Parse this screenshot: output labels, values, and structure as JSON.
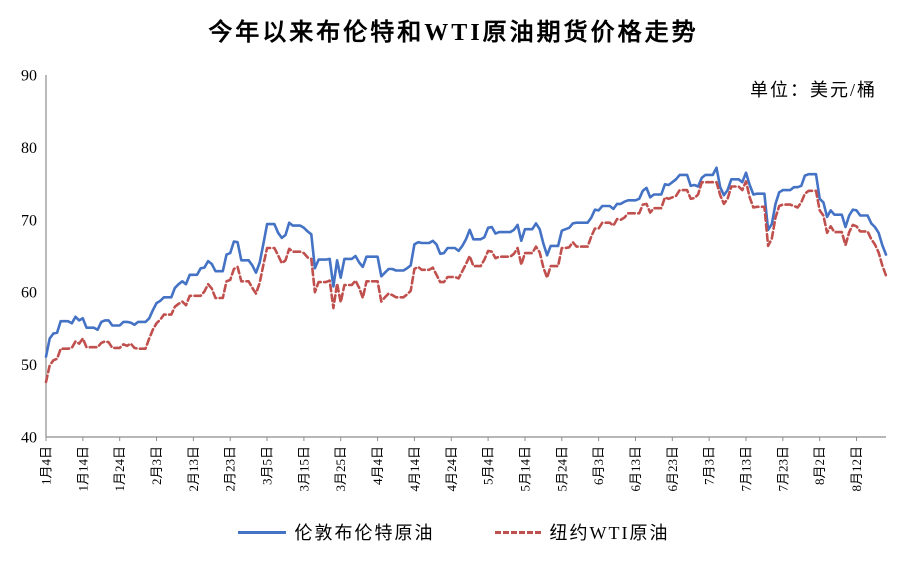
{
  "chart_data": {
    "type": "line",
    "title": "今年以来布伦特和WTI原油期货价格走势",
    "unit_label": "单位：美元/桶",
    "ylim": [
      40,
      90
    ],
    "yticks": [
      40,
      50,
      60,
      70,
      80,
      90
    ],
    "grid": false,
    "legend_position": "bottom",
    "xtick_every": 10,
    "xtick_labels": [
      "1月4日",
      "1月14日",
      "1月24日",
      "2月3日",
      "2月13日",
      "2月23日",
      "3月5日",
      "3月15日",
      "3月25日",
      "4月4日",
      "4月14日",
      "4月24日",
      "5月4日",
      "5月14日",
      "5月24日",
      "6月3日",
      "6月13日",
      "6月23日",
      "7月3日",
      "7月13日",
      "7月23日",
      "8月2日",
      "8月12日"
    ],
    "series": [
      {
        "name": "伦敦布伦特原油",
        "color": "#4472C4",
        "line_style": "solid",
        "values": [
          51.1,
          53.6,
          54.3,
          54.4,
          56.0,
          56.0,
          56.0,
          55.7,
          56.6,
          56.1,
          56.4,
          55.1,
          55.1,
          55.1,
          54.8,
          55.9,
          56.1,
          56.1,
          55.4,
          55.4,
          55.4,
          55.9,
          55.9,
          55.8,
          55.5,
          55.9,
          55.9,
          55.9,
          56.4,
          57.5,
          58.5,
          58.8,
          59.3,
          59.3,
          59.3,
          60.6,
          61.1,
          61.5,
          61.1,
          62.4,
          62.4,
          62.4,
          63.3,
          63.4,
          64.3,
          63.9,
          62.9,
          62.9,
          62.9,
          65.2,
          65.4,
          67.0,
          66.9,
          64.4,
          64.4,
          64.4,
          63.7,
          62.7,
          64.1,
          66.7,
          69.4,
          69.4,
          69.4,
          68.2,
          67.5,
          67.9,
          69.6,
          69.2,
          69.2,
          69.2,
          68.9,
          68.4,
          68.0,
          63.3,
          64.5,
          64.5,
          64.5,
          64.6,
          60.8,
          64.4,
          62.0,
          64.6,
          64.6,
          64.6,
          65.0,
          64.1,
          63.5,
          64.9,
          64.9,
          64.9,
          64.9,
          62.2,
          62.7,
          63.2,
          63.2,
          63.0,
          63.0,
          63.0,
          63.3,
          63.7,
          66.6,
          66.9,
          66.8,
          66.8,
          66.8,
          67.1,
          66.6,
          65.3,
          65.4,
          66.1,
          66.1,
          66.1,
          65.7,
          66.4,
          67.3,
          68.6,
          67.3,
          67.3,
          67.3,
          67.6,
          68.9,
          69.0,
          68.1,
          68.3,
          68.3,
          68.3,
          68.3,
          68.6,
          69.3,
          67.1,
          68.7,
          68.7,
          68.7,
          69.5,
          68.7,
          66.7,
          65.1,
          66.4,
          66.4,
          66.4,
          68.5,
          68.7,
          68.9,
          69.5,
          69.6,
          69.6,
          69.6,
          69.6,
          70.3,
          71.4,
          71.3,
          71.9,
          71.9,
          71.9,
          71.5,
          72.2,
          72.2,
          72.5,
          72.7,
          72.7,
          72.7,
          72.9,
          74.0,
          74.4,
          73.1,
          73.5,
          73.5,
          73.5,
          74.9,
          74.8,
          75.2,
          75.6,
          76.2,
          76.2,
          76.2,
          74.7,
          74.8,
          74.6,
          75.8,
          76.2,
          76.2,
          76.2,
          77.2,
          74.5,
          73.4,
          74.1,
          75.6,
          75.6,
          75.6,
          75.2,
          76.5,
          74.8,
          73.5,
          73.6,
          73.6,
          73.6,
          68.6,
          69.4,
          72.2,
          73.8,
          74.1,
          74.1,
          74.1,
          74.5,
          74.5,
          74.7,
          76.1,
          76.3,
          76.3,
          76.3,
          72.9,
          72.4,
          70.4,
          71.3,
          70.7,
          70.7,
          70.7,
          69.0,
          70.6,
          71.4,
          71.3,
          70.6,
          70.6,
          70.6,
          69.5,
          69.0,
          68.2,
          66.5,
          65.2
        ]
      },
      {
        "name": "纽约WTI原油",
        "color": "#C0504D",
        "line_style": "dashed",
        "values": [
          47.6,
          49.9,
          50.6,
          50.8,
          52.2,
          52.2,
          52.2,
          52.3,
          53.2,
          52.9,
          53.6,
          52.4,
          52.4,
          52.4,
          52.4,
          53.0,
          53.2,
          53.1,
          52.3,
          52.3,
          52.3,
          52.8,
          52.6,
          52.9,
          52.3,
          52.2,
          52.2,
          52.2,
          53.6,
          54.8,
          55.7,
          56.2,
          56.9,
          56.9,
          56.9,
          58.0,
          58.4,
          58.7,
          58.2,
          59.5,
          59.5,
          59.5,
          59.5,
          60.1,
          61.1,
          60.5,
          59.2,
          59.2,
          59.2,
          61.5,
          61.7,
          63.2,
          63.5,
          61.5,
          61.5,
          61.5,
          60.6,
          59.8,
          61.3,
          63.8,
          66.1,
          66.1,
          66.1,
          65.1,
          64.0,
          64.4,
          66.0,
          65.6,
          65.6,
          65.6,
          65.4,
          64.8,
          64.6,
          60.0,
          61.4,
          61.4,
          61.4,
          61.6,
          57.8,
          61.2,
          58.6,
          61.0,
          61.0,
          61.0,
          61.6,
          60.6,
          59.2,
          61.5,
          61.5,
          61.5,
          61.5,
          58.7,
          59.3,
          59.8,
          59.6,
          59.3,
          59.3,
          59.3,
          59.7,
          60.2,
          63.2,
          63.5,
          63.1,
          63.1,
          63.1,
          63.4,
          62.4,
          61.4,
          61.4,
          62.1,
          62.1,
          62.1,
          61.9,
          62.9,
          63.9,
          65.0,
          63.6,
          63.6,
          63.6,
          64.5,
          65.7,
          65.6,
          64.7,
          64.9,
          64.9,
          64.9,
          64.9,
          65.3,
          66.1,
          63.8,
          65.4,
          65.4,
          65.4,
          66.3,
          65.5,
          63.4,
          62.0,
          63.6,
          63.6,
          63.6,
          66.1,
          66.1,
          66.2,
          66.9,
          66.3,
          66.3,
          66.3,
          66.3,
          67.7,
          68.8,
          68.8,
          69.6,
          69.6,
          69.6,
          69.2,
          70.1,
          70.0,
          70.3,
          70.9,
          70.9,
          70.9,
          70.9,
          72.1,
          72.2,
          71.0,
          71.6,
          71.6,
          71.6,
          73.1,
          72.9,
          73.1,
          73.3,
          74.1,
          74.1,
          74.1,
          72.9,
          73.0,
          73.5,
          75.2,
          75.2,
          75.2,
          75.2,
          75.2,
          73.4,
          72.2,
          72.9,
          74.6,
          74.6,
          74.6,
          74.1,
          75.3,
          73.1,
          71.7,
          71.8,
          71.8,
          71.8,
          66.4,
          67.4,
          70.3,
          71.9,
          72.1,
          72.1,
          72.1,
          71.9,
          71.7,
          72.4,
          73.6,
          74.0,
          74.0,
          74.0,
          71.3,
          70.6,
          68.2,
          69.1,
          68.3,
          68.3,
          68.3,
          66.5,
          68.3,
          69.3,
          69.1,
          68.4,
          68.4,
          68.4,
          67.3,
          66.6,
          65.5,
          63.7,
          62.3
        ]
      }
    ]
  }
}
